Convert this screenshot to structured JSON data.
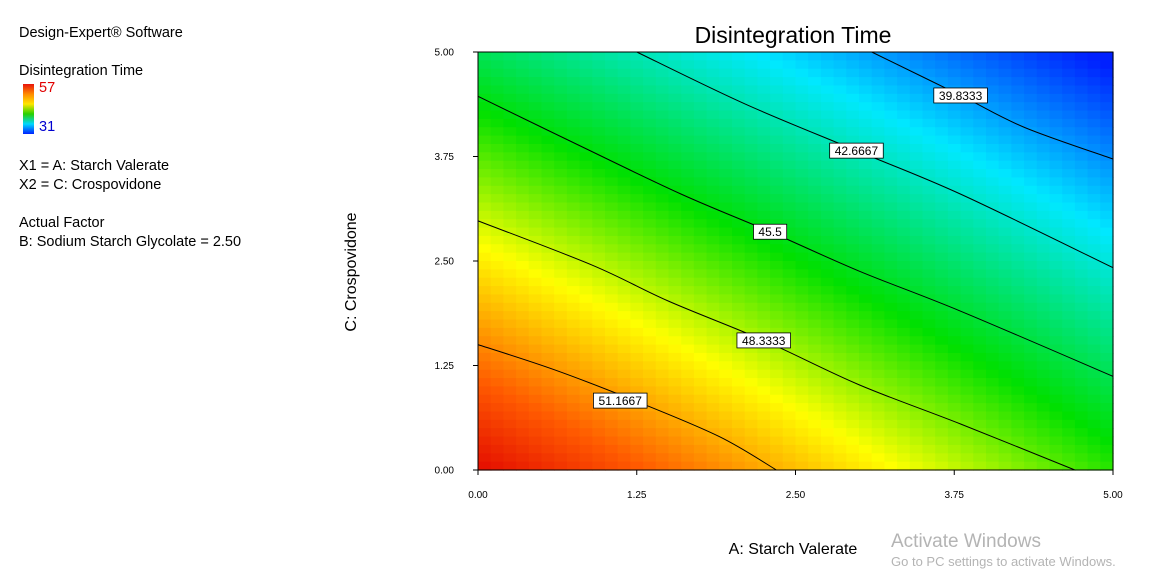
{
  "sidebar": {
    "software": "Design-Expert® Software",
    "response": "Disintegration Time",
    "legend_high": "57",
    "legend_low": "31",
    "x1": "X1 = A: Starch Valerate",
    "x2": "X2 = C: Crospovidone",
    "actual_factor_heading": "Actual Factor",
    "actual_factor": "B: Sodium Starch Glycolate = 2.50"
  },
  "watermark": {
    "title": "Activate Windows",
    "subtitle": "Go to PC settings to activate Windows."
  },
  "chart_data": {
    "type": "contour",
    "title": "Disintegration Time",
    "xlabel": "A: Starch Valerate",
    "ylabel": "C: Crospovidone",
    "xlim": [
      0,
      5
    ],
    "ylim": [
      0,
      5
    ],
    "x_ticks": [
      "0.00",
      "1.25",
      "2.50",
      "3.75",
      "5.00"
    ],
    "y_ticks": [
      "0.00",
      "1.25",
      "2.50",
      "3.75",
      "5.00"
    ],
    "color_scale": {
      "min": 31,
      "max": 57,
      "colors": [
        "#0020ff",
        "#00e8ff",
        "#00e000",
        "#ffff00",
        "#ff5a00",
        "#e00000"
      ]
    },
    "contours": [
      {
        "label": "51.1667",
        "value": 51.1667,
        "label_at": [
          1.12,
          0.83
        ],
        "points": [
          [
            0,
            1.5
          ],
          [
            0.6,
            1.2
          ],
          [
            1.25,
            0.82
          ],
          [
            1.9,
            0.4
          ],
          [
            2.35,
            0
          ]
        ]
      },
      {
        "label": "48.3333",
        "value": 48.3333,
        "label_at": [
          2.25,
          1.55
        ],
        "points": [
          [
            0,
            2.98
          ],
          [
            0.9,
            2.45
          ],
          [
            1.5,
            2.02
          ],
          [
            2.25,
            1.55
          ],
          [
            3.0,
            1.02
          ],
          [
            3.8,
            0.55
          ],
          [
            4.7,
            0
          ]
        ]
      },
      {
        "label": "45.5",
        "value": 45.5,
        "label_at": [
          2.3,
          2.85
        ],
        "points": [
          [
            0,
            4.47
          ],
          [
            0.8,
            3.88
          ],
          [
            1.6,
            3.3
          ],
          [
            2.3,
            2.85
          ],
          [
            3.0,
            2.38
          ],
          [
            3.8,
            1.9
          ],
          [
            5.0,
            1.12
          ]
        ]
      },
      {
        "label": "42.6667",
        "value": 42.6667,
        "label_at": [
          2.98,
          3.82
        ],
        "points": [
          [
            1.25,
            5.0
          ],
          [
            2.1,
            4.38
          ],
          [
            2.98,
            3.82
          ],
          [
            3.8,
            3.3
          ],
          [
            5.0,
            2.42
          ]
        ]
      },
      {
        "label": "39.8333",
        "value": 39.8333,
        "label_at": [
          3.8,
          4.48
        ],
        "points": [
          [
            3.1,
            5.0
          ],
          [
            3.8,
            4.48
          ],
          [
            4.3,
            4.1
          ],
          [
            5.0,
            3.72
          ]
        ]
      }
    ]
  }
}
